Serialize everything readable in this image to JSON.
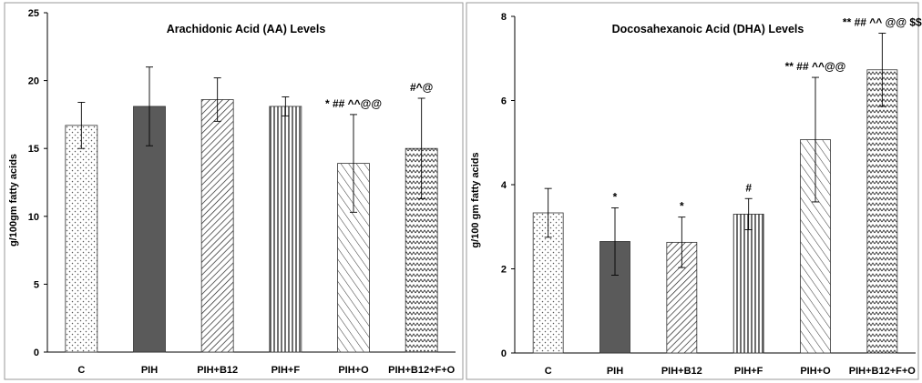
{
  "chart_data": [
    {
      "type": "bar",
      "title": "Arachidonic Acid (AA)  Levels",
      "ylabel": "g/100gm fatty  acids",
      "xlabel": "",
      "ylim": [
        0,
        25
      ],
      "yticks": [
        0,
        5,
        10,
        15,
        20,
        25
      ],
      "grid": false,
      "categories": [
        "C",
        "PIH",
        "PIH+B12",
        "PIH+F",
        "PIH+O",
        "PIH+B12+F+O"
      ],
      "values": [
        16.7,
        18.1,
        18.6,
        18.1,
        13.9,
        15.0
      ],
      "errors": [
        1.7,
        2.9,
        1.6,
        0.7,
        3.6,
        3.7
      ],
      "annotations": [
        "",
        "",
        "",
        "",
        "* ## ^^@@",
        "#^@"
      ],
      "patterns": [
        "dots",
        "solid-dark",
        "diagonal-right",
        "vertical",
        "diagonal-left",
        "zigzag"
      ]
    },
    {
      "type": "bar",
      "title": "Docosahexanoic Acid (DHA) Levels",
      "ylabel": "g/100 gm fatty  acids",
      "xlabel": "",
      "ylim": [
        0,
        8
      ],
      "yticks": [
        0,
        2,
        4,
        6,
        8
      ],
      "grid": false,
      "categories": [
        "C",
        "PIH",
        "PIH+B12",
        "PIH+F",
        "PIH+O",
        "PIH+B12+F+O"
      ],
      "values": [
        3.33,
        2.65,
        2.63,
        3.3,
        5.07,
        6.73
      ],
      "errors": [
        0.58,
        0.8,
        0.6,
        0.37,
        1.48,
        0.87
      ],
      "annotations": [
        "",
        "*",
        "*",
        "#",
        "** ## ^^@@",
        "** ## ^^ @@ $$"
      ],
      "patterns": [
        "dots",
        "solid-dark",
        "diagonal-right",
        "vertical",
        "diagonal-left",
        "zigzag"
      ]
    }
  ]
}
